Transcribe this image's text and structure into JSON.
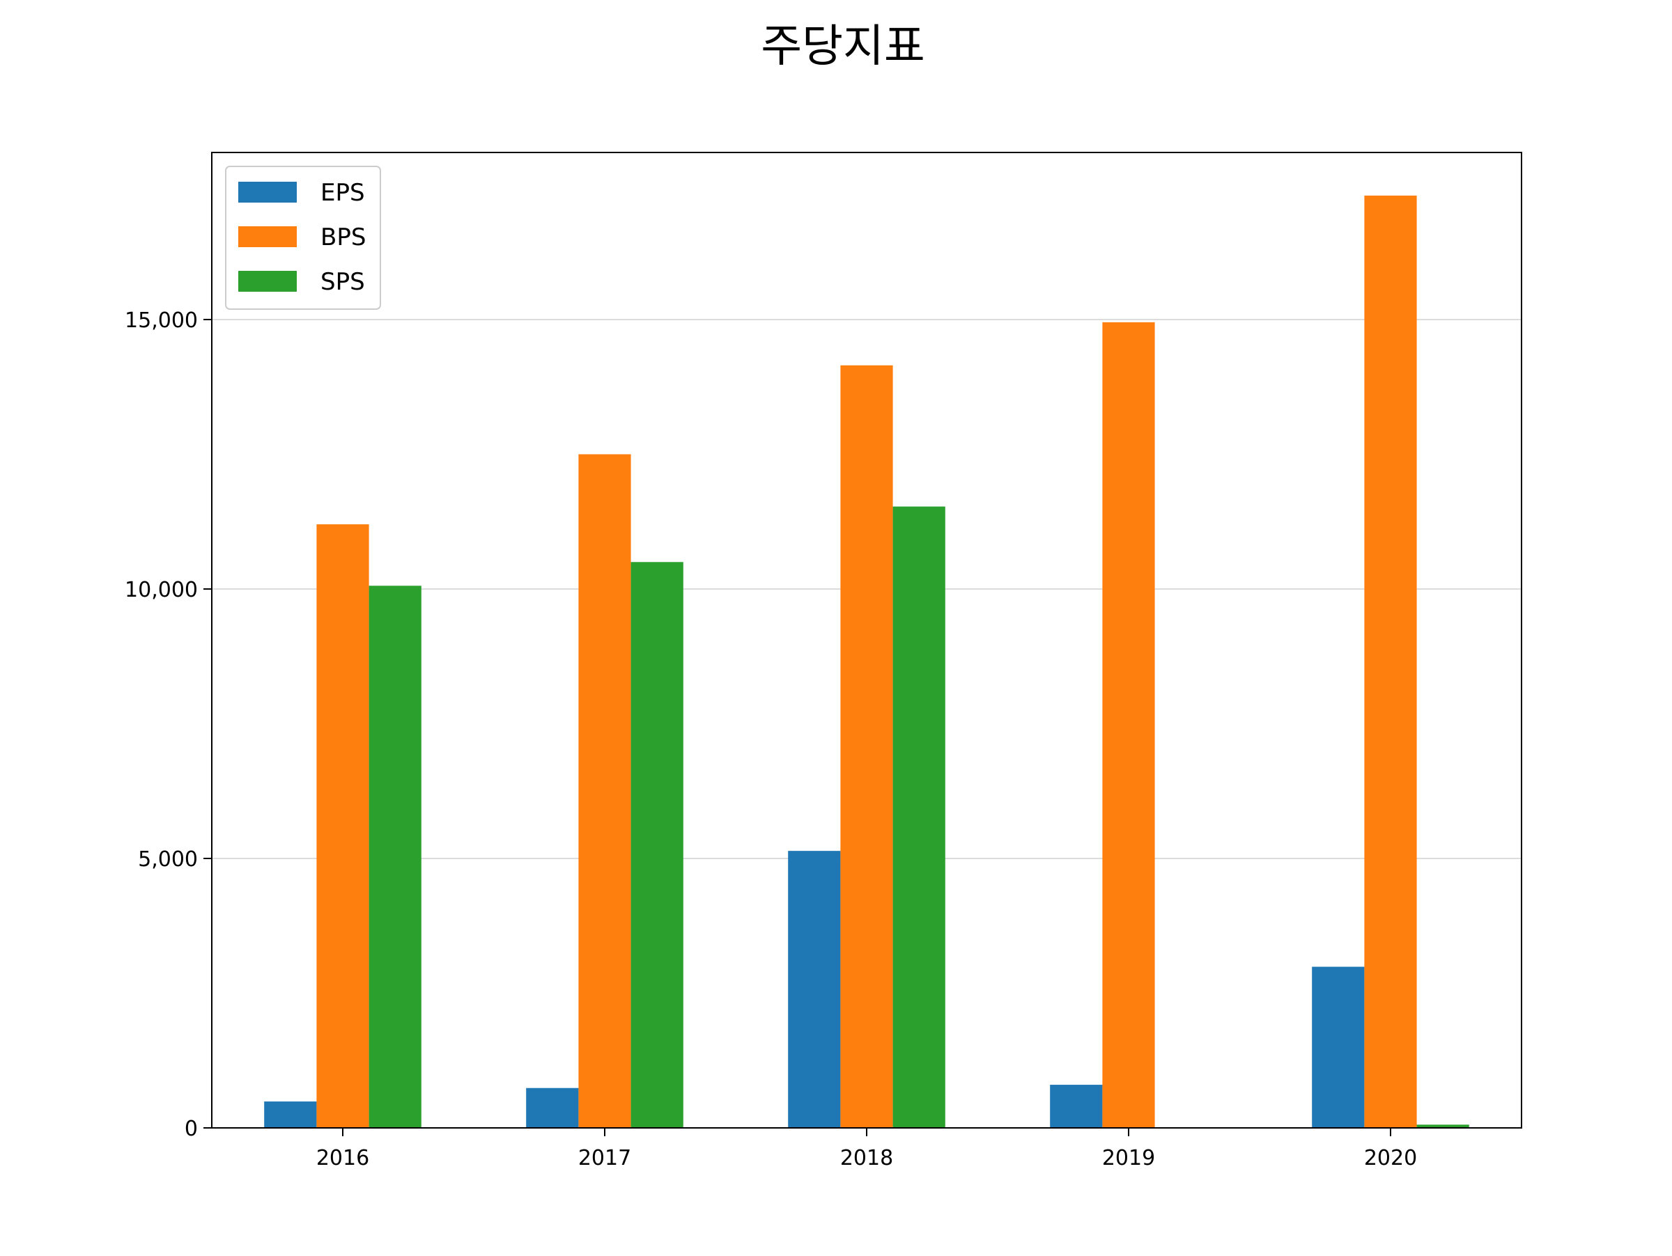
{
  "chart_data": {
    "type": "bar",
    "title": "주당지표",
    "xlabel": "",
    "ylabel": "",
    "categories": [
      "2016",
      "2017",
      "2018",
      "2019",
      "2020"
    ],
    "series": [
      {
        "name": "EPS",
        "color": "#1f77b4",
        "values": [
          490,
          740,
          5140,
          800,
          2990
        ]
      },
      {
        "name": "BPS",
        "color": "#ff7f0e",
        "values": [
          11200,
          12500,
          14150,
          14950,
          17300
        ]
      },
      {
        "name": "SPS",
        "color": "#2ca02c",
        "values": [
          10060,
          10500,
          11530,
          0,
          60
        ]
      }
    ],
    "ylim": [
      0,
      18100
    ],
    "yticks": [
      0,
      5000,
      10000,
      15000
    ],
    "ytick_labels": [
      "0",
      "5,000",
      "10,000",
      "15,000"
    ],
    "grid": "horizontal",
    "legend_position": "top-left"
  }
}
